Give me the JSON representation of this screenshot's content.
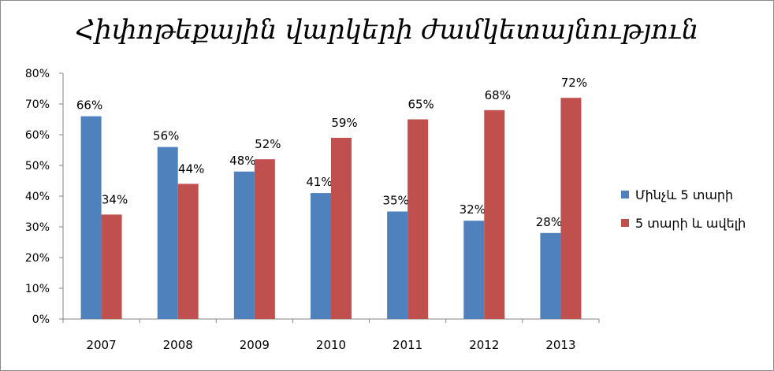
{
  "chart_data": {
    "type": "bar",
    "title": "Հիփոթեքային վարկերի ժամկետայնություն",
    "categories": [
      "2007",
      "2008",
      "2009",
      "2010",
      "2011",
      "2012",
      "2013"
    ],
    "series": [
      {
        "name": "Մինչև 5 տարի",
        "color": "#4f81bd",
        "values": [
          66,
          56,
          48,
          41,
          35,
          32,
          28
        ],
        "labels": [
          "66%",
          "56%",
          "48%",
          "41%",
          "35%",
          "32%",
          "28%"
        ]
      },
      {
        "name": "5 տարի և ավելի",
        "color": "#c0504d",
        "values": [
          34,
          44,
          52,
          59,
          65,
          68,
          72
        ],
        "labels": [
          "34%",
          "44%",
          "52%",
          "59%",
          "65%",
          "68%",
          "72%"
        ]
      }
    ],
    "ylim": [
      0,
      80
    ],
    "yticks": [
      "0%",
      "10%",
      "20%",
      "30%",
      "40%",
      "50%",
      "60%",
      "70%",
      "80%"
    ],
    "grid": false,
    "legend_position": "right"
  }
}
